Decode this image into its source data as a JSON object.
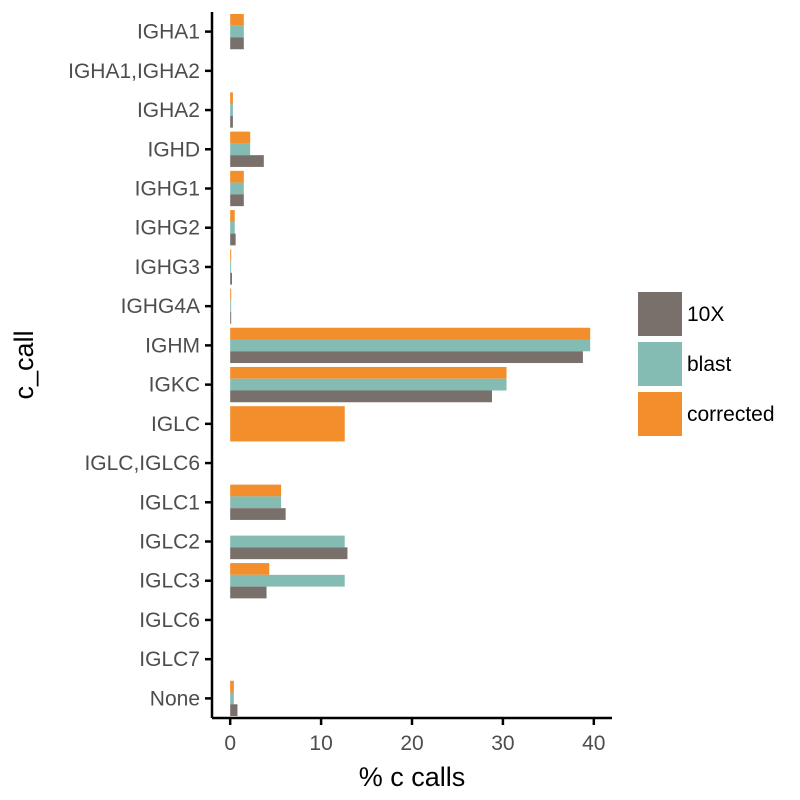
{
  "chart_data": {
    "type": "bar",
    "orientation": "horizontal",
    "xlabel": "% c calls",
    "ylabel": "c_call",
    "xlim": [
      -2,
      42
    ],
    "xticks": [
      0,
      10,
      20,
      30,
      40
    ],
    "grid": false,
    "legend_position": "right",
    "categories": [
      "IGHA1",
      "IGHA1,IGHA2",
      "IGHA2",
      "IGHD",
      "IGHG1",
      "IGHG2",
      "IGHG3",
      "IGHG4A",
      "IGHM",
      "IGKC",
      "IGLC",
      "IGLC,IGLC6",
      "IGLC1",
      "IGLC2",
      "IGLC3",
      "IGLC6",
      "IGLC7",
      "None"
    ],
    "series": [
      {
        "name": "10X",
        "color": "#7a706b",
        "values": [
          1.5,
          0,
          0.3,
          3.7,
          1.5,
          0.6,
          0.2,
          0.1,
          38.8,
          28.8,
          null,
          0,
          6.1,
          12.9,
          4.0,
          0,
          0,
          0.8
        ]
      },
      {
        "name": "blast",
        "color": "#84bcb4",
        "values": [
          1.5,
          0,
          0.3,
          2.2,
          1.5,
          0.5,
          0.1,
          0.05,
          39.6,
          30.4,
          null,
          0,
          5.6,
          12.6,
          12.6,
          0,
          0,
          0.4
        ]
      },
      {
        "name": "corrected",
        "color": "#f28e2b",
        "values": [
          1.5,
          0,
          0.3,
          2.2,
          1.5,
          0.5,
          0.1,
          0.05,
          39.6,
          30.4,
          12.6,
          0,
          5.6,
          null,
          4.3,
          0,
          0,
          0.4
        ]
      }
    ]
  }
}
